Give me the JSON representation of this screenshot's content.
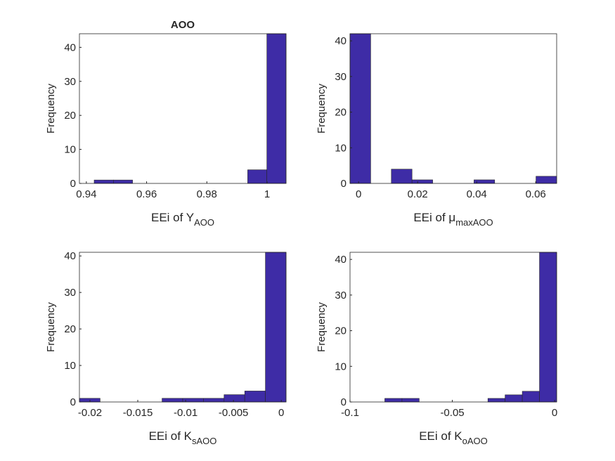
{
  "chart_data": [
    {
      "type": "histogram",
      "title": "AOO",
      "xlabel": "EEi of Y",
      "xlabel_sub": "AOO",
      "ylabel": "Frequency",
      "bins": [
        0.9426,
        0.94897,
        0.95534,
        0.96171,
        0.96808,
        0.97445,
        0.98082,
        0.98719,
        0.99356,
        0.99993,
        1.0063
      ],
      "counts": [
        1,
        1,
        0,
        0,
        0,
        0,
        0,
        0,
        4,
        44
      ],
      "color": "#3e2ca6",
      "xlim": [
        0.9377,
        1.0063
      ],
      "xticks": [
        0.94,
        0.96,
        0.98,
        1
      ],
      "ylim": [
        0,
        44
      ],
      "yticks": [
        0,
        10,
        20,
        30,
        40
      ]
    },
    {
      "type": "histogram",
      "xlabel": "EEi of μ",
      "xlabel_sub": "maxAOO",
      "ylabel": "Frequency",
      "bins": [
        -0.0029,
        0.0041,
        0.0111,
        0.0181,
        0.0251,
        0.0321,
        0.0391,
        0.0461,
        0.0531,
        0.0601,
        0.0671
      ],
      "counts": [
        42,
        0,
        4,
        1,
        0,
        0,
        1,
        0,
        0,
        2
      ],
      "color": "#3e2ca6",
      "xlim": [
        -0.0029,
        0.0671
      ],
      "xticks": [
        0,
        0.02,
        0.04,
        0.06
      ],
      "ylim": [
        0,
        42
      ],
      "yticks": [
        0,
        10,
        20,
        30,
        40
      ]
    },
    {
      "type": "histogram",
      "xlabel": "EEi of K",
      "xlabel_sub": "sAOO",
      "ylabel": "Frequency",
      "bins": [
        -0.0211,
        -0.01894,
        -0.01678,
        -0.01462,
        -0.01246,
        -0.0103,
        -0.00814,
        -0.00598,
        -0.00382,
        -0.00166,
        0.0005
      ],
      "counts": [
        1,
        0,
        0,
        0,
        1,
        1,
        1,
        2,
        3,
        41
      ],
      "color": "#3e2ca6",
      "xlim": [
        -0.0211,
        0.0005
      ],
      "xticks": [
        -0.02,
        -0.015,
        -0.01,
        -0.005,
        0
      ],
      "ylim": [
        0,
        41
      ],
      "yticks": [
        0,
        10,
        20,
        30,
        40
      ]
    },
    {
      "type": "histogram",
      "xlabel": "EEi of K",
      "xlabel_sub": "oAOO",
      "ylabel": "Frequency",
      "bins": [
        -0.083,
        -0.0746,
        -0.0662,
        -0.0578,
        -0.0494,
        -0.041,
        -0.0326,
        -0.0242,
        -0.0158,
        -0.0074,
        0.001
      ],
      "counts": [
        1,
        1,
        0,
        0,
        0,
        0,
        1,
        2,
        3,
        42
      ],
      "color": "#3e2ca6",
      "xlim": [
        -0.1,
        0.001
      ],
      "xticks": [
        -0.1,
        -0.05,
        0
      ],
      "ylim": [
        0,
        42
      ],
      "yticks": [
        0,
        10,
        20,
        30,
        40
      ]
    }
  ]
}
